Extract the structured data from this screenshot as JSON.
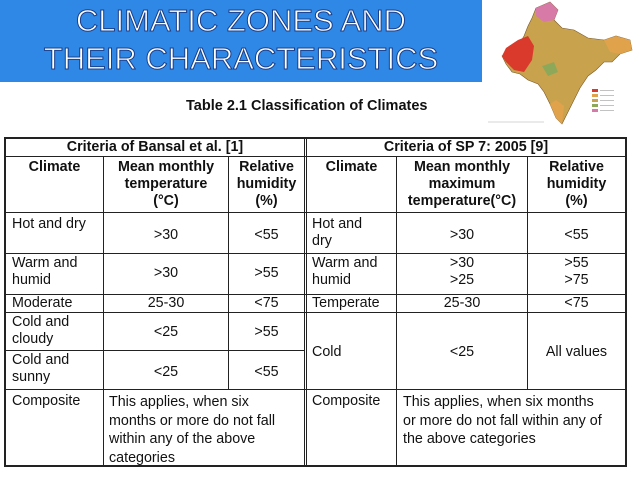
{
  "slide": {
    "title_line1": "CLIMATIC ZONES AND",
    "title_line2": "THEIR CHARACTERISTICS",
    "table_caption": "Table 2.1 Classification of Climates"
  },
  "map_figure": {
    "description_icon": "india-climate-map",
    "colors": {
      "hot_dry": "#d93a2b",
      "warm_humid": "#e0a24a",
      "composite": "#c9a24e",
      "temperate": "#8ea85a",
      "cold": "#d87aa8"
    }
  },
  "table": {
    "left_header": "Criteria of Bansal et al. [1]",
    "right_header": "Criteria of SP 7: 2005 [9]",
    "left_columns": [
      "Climate",
      "Mean monthly\ntemperature\n(°C)",
      "Relative\nhumidity\n(%)"
    ],
    "right_columns": [
      "Climate",
      "Mean monthly\nmaximum\ntemperature(°C)",
      "Relative\nhumidity\n(%)"
    ],
    "left_rows": [
      {
        "climate": "Hot and dry",
        "temp": ">30",
        "rh": "<55"
      },
      {
        "climate": "Warm and\nhumid",
        "temp": ">30",
        "rh": ">55"
      },
      {
        "climate": "Moderate",
        "temp": "25-30",
        "rh": "<75"
      },
      {
        "climate": "Cold and\ncloudy",
        "temp": "<25",
        "rh": ">55"
      },
      {
        "climate": "Cold and\nsunny",
        "temp": "<25",
        "rh": "<55"
      },
      {
        "climate": "Composite",
        "desc": "This applies, when six\nmonths or more do not fall\nwithin any of the above\ncategories"
      }
    ],
    "right_rows": [
      {
        "climate": "Hot and\ndry",
        "temp": ">30",
        "rh": "<55"
      },
      {
        "climate": "Warm and\nhumid",
        "temp": ">30\n>25",
        "rh": ">55\n>75"
      },
      {
        "climate": "Temperate",
        "temp": "25-30",
        "rh": "<75"
      },
      {
        "climate": "Cold",
        "temp": "<25",
        "rh": "All values"
      },
      {
        "climate": "Composite",
        "desc": "This applies, when six months\nor more do not fall within any of\nthe above categories"
      }
    ]
  }
}
